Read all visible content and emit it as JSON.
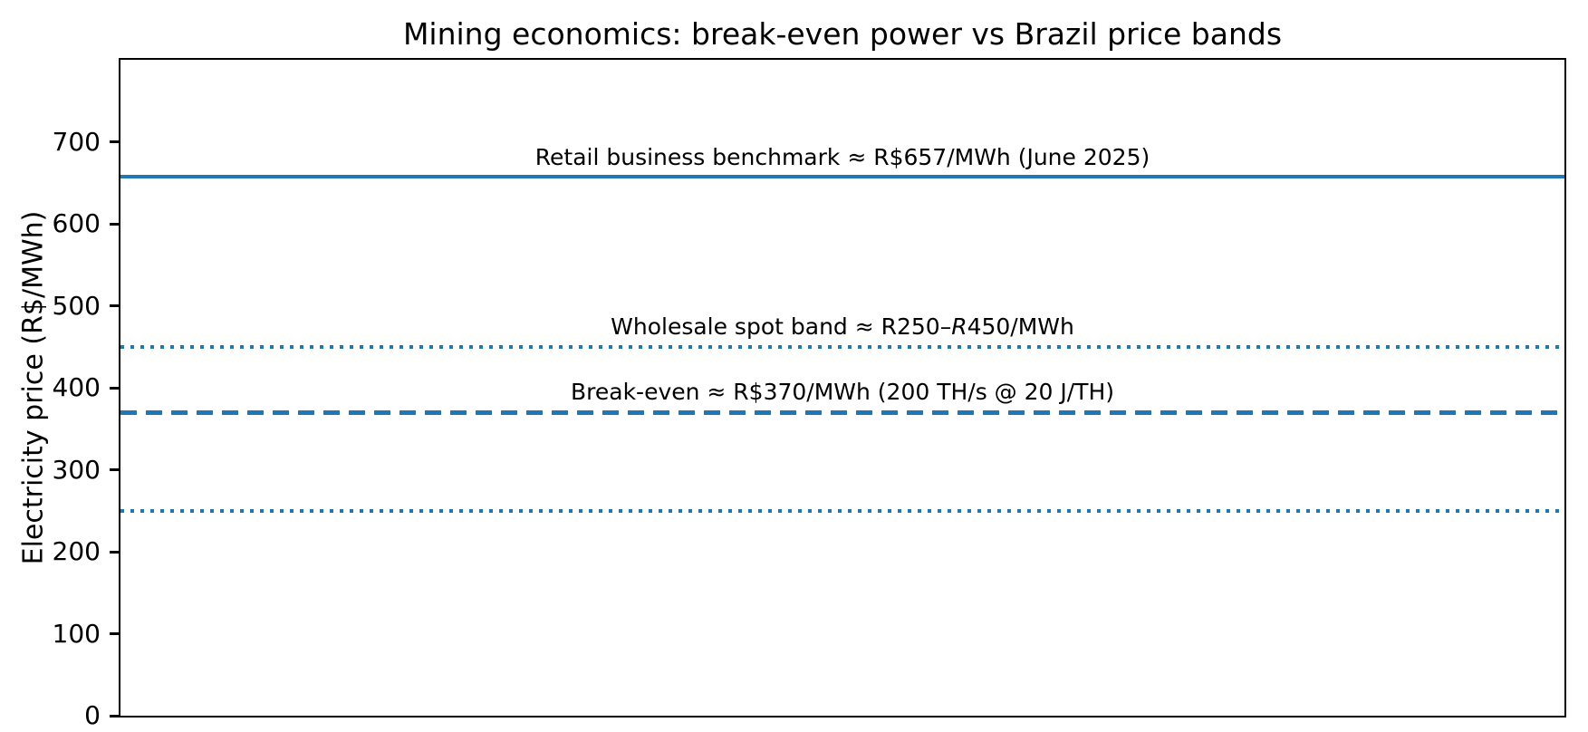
{
  "chart_data": {
    "type": "line",
    "subtype": "horizontal-reference-lines",
    "title": "Mining economics: break-even power vs Brazil price bands",
    "xlabel": "",
    "ylabel": "Electricity price (R$/MWh)",
    "ylim": [
      0,
      800
    ],
    "yticks": [
      0,
      100,
      200,
      300,
      400,
      500,
      600,
      700
    ],
    "xticks": [],
    "grid": false,
    "legend": "none",
    "line_color": "#1f77b4",
    "axis_color": "#000000",
    "background_color": "#ffffff",
    "lines": [
      {
        "name": "retail-benchmark",
        "y": 657,
        "style": "solid",
        "label": "Retail business benchmark ≈ R$657/MWh (June 2025)",
        "label_parts": [
          {
            "text": "Retail business benchmark ≈ R$657/MWh (June 2025)",
            "italic": false
          }
        ],
        "label_x": 0.5
      },
      {
        "name": "wholesale-band-upper",
        "y": 450,
        "style": "dotted",
        "label": "Wholesale spot band ≈ R250–R450/MWh",
        "label_parts": [
          {
            "text": "Wholesale spot band ≈ R250–",
            "italic": false
          },
          {
            "text": "R",
            "italic": true
          },
          {
            "text": "450/MWh",
            "italic": false
          }
        ],
        "label_x": 0.5
      },
      {
        "name": "break-even",
        "y": 370,
        "style": "dashed",
        "label": "Break-even ≈ R$370/MWh (200 TH/s @ 20 J/TH)",
        "label_parts": [
          {
            "text": "Break-even ≈ R$370/MWh (200 TH/s @ 20 J/TH)",
            "italic": false
          }
        ],
        "label_x": 0.5
      },
      {
        "name": "wholesale-band-lower",
        "y": 250,
        "style": "dotted",
        "label": "",
        "label_parts": [],
        "label_x": 0.5
      }
    ]
  }
}
